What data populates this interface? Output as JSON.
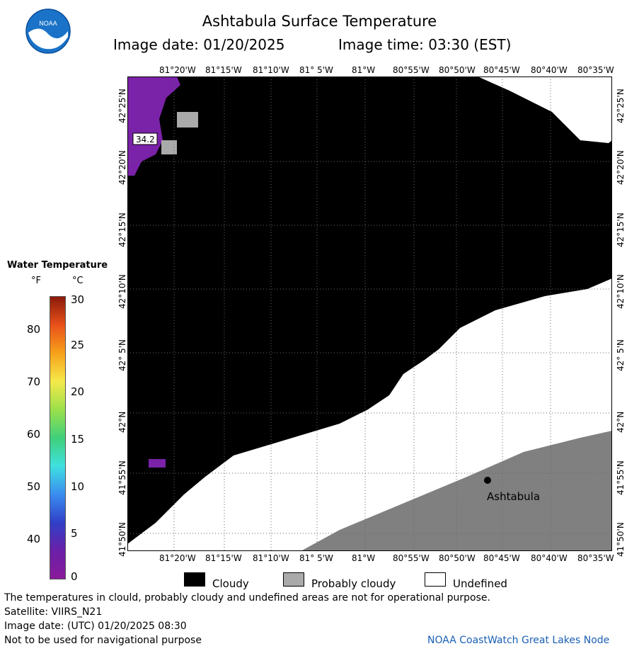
{
  "title": "Ashtabula Surface Temperature",
  "image_date_label": "Image date: 01/20/2025",
  "image_time_label": "Image time: 03:30 (EST)",
  "logo_text": "NOAA",
  "x_ticks": [
    "81°20'W",
    "81°15'W",
    "81°10'W",
    "81° 5'W",
    "81°W",
    "80°55'W",
    "80°50'W",
    "80°45'W",
    "80°40'W",
    "80°35'W"
  ],
  "y_ticks": [
    "42°25'N",
    "42°20'N",
    "42°15'N",
    "42°10'N",
    "42° 5'N",
    "42°N",
    "41°55'N",
    "41°50'N"
  ],
  "city_label": "Ashtabula",
  "temp_label": "34.2",
  "colorbar": {
    "title": "Water Temperature",
    "unit_f": "°F",
    "unit_c": "°C",
    "f_ticks": [
      "80",
      "70",
      "60",
      "50",
      "40"
    ],
    "c_ticks": [
      "30",
      "25",
      "20",
      "15",
      "10",
      "5",
      "0"
    ],
    "colors": [
      "#8b1a0a",
      "#e8501a",
      "#f7a21a",
      "#f5e94a",
      "#9be04a",
      "#3fd07a",
      "#3fe0e0",
      "#3a8ef0",
      "#3040c8",
      "#6a20a8",
      "#8a1a9a"
    ]
  },
  "legend": {
    "cloudy": "Cloudy",
    "probably_cloudy": "Probably cloudy",
    "undefined": "Undefined"
  },
  "colors": {
    "cloudy": "#000000",
    "probably_cloudy": "#aaaaaa",
    "undefined": "#ffffff",
    "land": "#808080",
    "water_purple": "#7a22a8",
    "credit": "#1a5fb4"
  },
  "footer": {
    "line1": "The temperatures in clould, probably cloudy and undefined areas are not for operational purpose.",
    "line2": "Satellite: VIIRS_N21",
    "line3": "Image date: (UTC) 01/20/2025  08:30",
    "line4": "Not to be used for navigational purpose",
    "credit": "NOAA CoastWatch Great Lakes Node"
  }
}
